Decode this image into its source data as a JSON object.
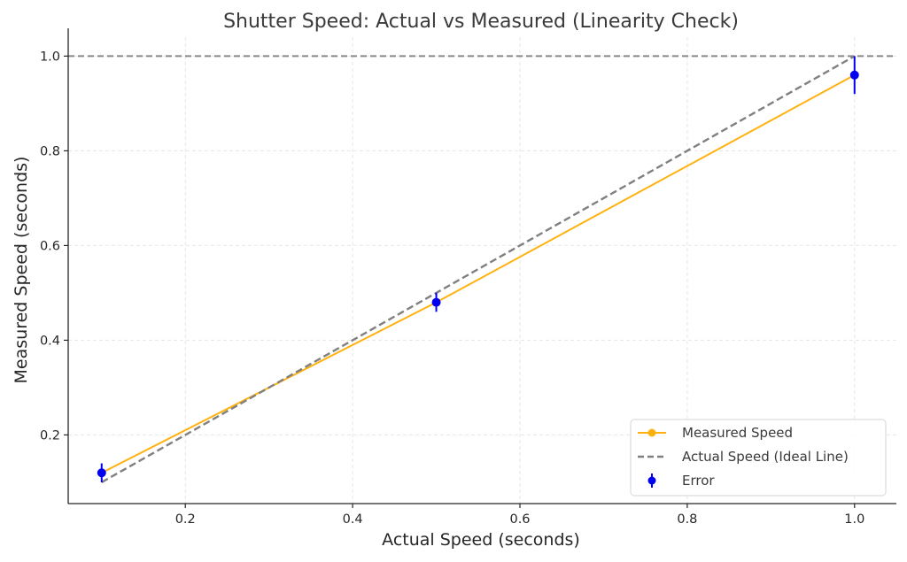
{
  "chart_data": {
    "type": "line",
    "title": "Shutter Speed: Actual vs Measured (Linearity Check)",
    "xlabel": "Actual Speed (seconds)",
    "ylabel": "Measured Speed (seconds)",
    "xlim": [
      0.06,
      1.05
    ],
    "ylim": [
      0.055,
      1.04
    ],
    "x_ticks": [
      0.2,
      0.4,
      0.6,
      0.8,
      1.0
    ],
    "y_ticks": [
      0.2,
      0.4,
      0.6,
      0.8,
      1.0
    ],
    "x_tick_labels": [
      "0.2",
      "0.4",
      "0.6",
      "0.8",
      "1.0"
    ],
    "y_tick_labels": [
      "0.2",
      "0.4",
      "0.6",
      "0.8",
      "1.0"
    ],
    "grid": true,
    "legend_position": "lower-right",
    "reference_hline": {
      "y": 1.0,
      "color": "#888888",
      "style": "dashed"
    },
    "series": [
      {
        "name": "Measured Speed",
        "kind": "line",
        "color": "#ffb20f",
        "x": [
          0.1,
          0.5,
          1.0
        ],
        "y": [
          0.12,
          0.48,
          0.96
        ]
      },
      {
        "name": "Actual Speed (Ideal Line)",
        "kind": "dashed-line",
        "color": "#808080",
        "x": [
          0.1,
          0.5,
          1.0
        ],
        "y": [
          0.1,
          0.5,
          1.0
        ]
      },
      {
        "name": "Error",
        "kind": "errorbar",
        "color": "#0000ee",
        "x": [
          0.1,
          0.5,
          1.0
        ],
        "y": [
          0.12,
          0.48,
          0.96
        ],
        "yerr": [
          0.02,
          0.02,
          0.04
        ]
      }
    ]
  }
}
